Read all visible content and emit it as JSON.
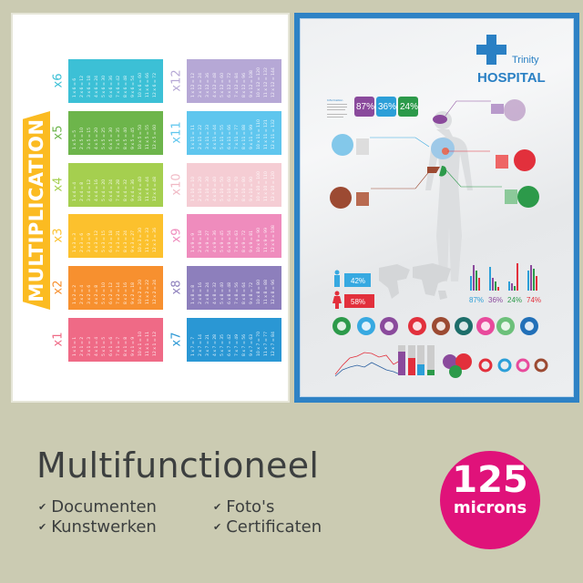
{
  "multiplication_poster": {
    "title": "MULTIPLICATION",
    "tables": [
      {
        "label": "x1",
        "n": 1,
        "color": "#ef6a86"
      },
      {
        "label": "x2",
        "n": 2,
        "color": "#f7902f"
      },
      {
        "label": "x3",
        "n": 3,
        "color": "#fcc12d"
      },
      {
        "label": "x4",
        "n": 4,
        "color": "#a5cf4f"
      },
      {
        "label": "x5",
        "n": 5,
        "color": "#6db54b"
      },
      {
        "label": "x6",
        "n": 6,
        "color": "#3cc0d6"
      },
      {
        "label": "x7",
        "n": 7,
        "color": "#2a97d4"
      },
      {
        "label": "x8",
        "n": 8,
        "color": "#8d7fbc"
      },
      {
        "label": "x9",
        "n": 9,
        "color": "#ef8cbd"
      },
      {
        "label": "x10",
        "n": 10,
        "color": "#f5cdd4"
      },
      {
        "label": "x11",
        "n": 11,
        "color": "#5fc6ee"
      },
      {
        "label": "x12",
        "n": 12,
        "color": "#b6a8d6"
      }
    ]
  },
  "hospital_poster": {
    "brand_small": "Trinity",
    "brand_large": "HOSPITAL",
    "info_label": "Information",
    "top_stats": [
      {
        "value": "87",
        "unit": "%",
        "color": "#8a4a9c"
      },
      {
        "value": "36",
        "unit": "%",
        "color": "#2c9fd8"
      },
      {
        "value": "24",
        "unit": "%",
        "color": "#2c9a4a"
      }
    ],
    "gender": [
      {
        "value": "42%",
        "color": "#37a9e1"
      },
      {
        "value": "58%",
        "color": "#e2303c"
      }
    ],
    "bar_stats": [
      {
        "value": "87",
        "unit": "%",
        "color": "#2c9fd8"
      },
      {
        "value": "36",
        "unit": "%",
        "color": "#8a4a9c"
      },
      {
        "value": "24",
        "unit": "%",
        "color": "#2c9a4a"
      },
      {
        "value": "74",
        "unit": "%",
        "color": "#e2303c"
      }
    ],
    "icon_row": [
      {
        "icon": "stomach-icon",
        "color": "#2c9a4a"
      },
      {
        "icon": "lungs-icon",
        "color": "#37a9e1"
      },
      {
        "icon": "brain-icon",
        "color": "#8a4a9c"
      },
      {
        "icon": "heart-organ-icon",
        "color": "#e2303c"
      },
      {
        "icon": "liver-icon",
        "color": "#9c4a32"
      },
      {
        "icon": "tooth-icon",
        "color": "#1d6e6a"
      },
      {
        "icon": "heart-icon",
        "color": "#e84a9c"
      },
      {
        "icon": "bed-icon",
        "color": "#6cc07a"
      },
      {
        "icon": "apple-icon",
        "color": "#2270b8"
      }
    ]
  },
  "headline": "Multifunctioneel",
  "features": [
    "Documenten",
    "Kunstwerken",
    "Foto's",
    "Certificaten"
  ],
  "badge": {
    "value": "125",
    "unit": "microns",
    "color": "#e0127a"
  }
}
